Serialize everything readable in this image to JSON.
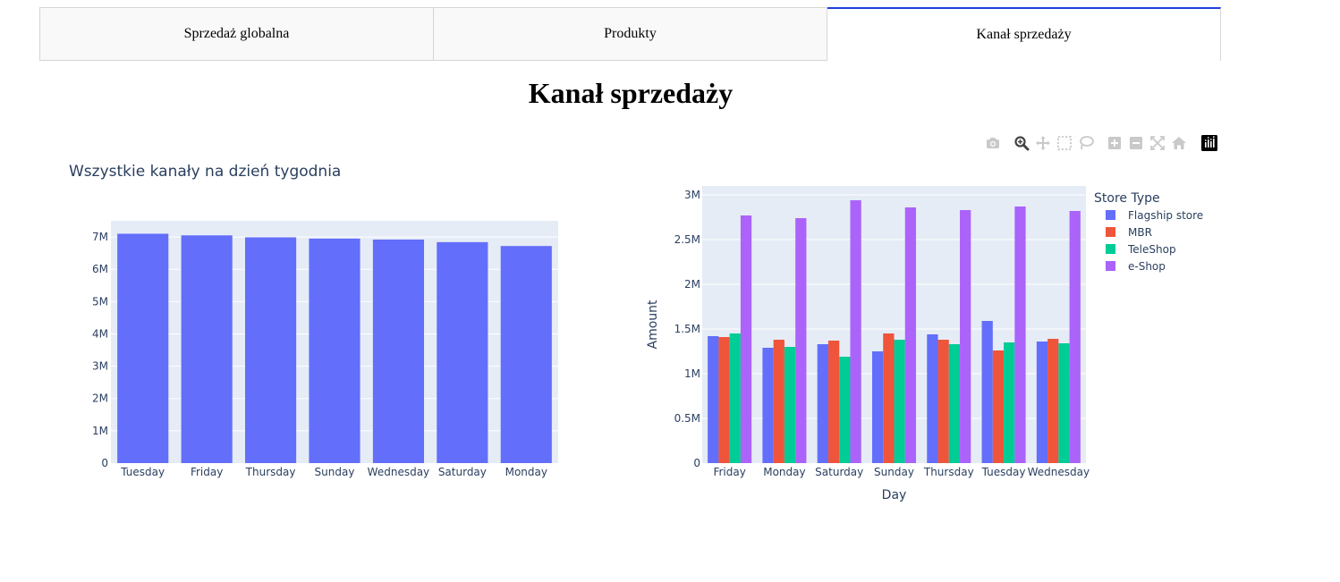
{
  "tabs": [
    {
      "label": "Sprzedaż globalna",
      "active": false
    },
    {
      "label": "Produkty",
      "active": false
    },
    {
      "label": "Kanał sprzedaży",
      "active": true
    }
  ],
  "page": {
    "title": "Kanał sprzedaży"
  },
  "modebar": {
    "icons": [
      "camera-icon",
      "zoom-icon",
      "pan-icon",
      "box-select-icon",
      "lasso-select-icon",
      "zoom-in-icon",
      "zoom-out-icon",
      "autoscale-icon",
      "reset-axes-icon",
      "plotly-logo-icon"
    ],
    "active": "zoom-icon"
  },
  "colors": {
    "plot_bg": "#e5ecf6",
    "grid": "#ffffff",
    "text": "#2a3f5f",
    "tab_accent": "#1f3fe0"
  },
  "chart_data": [
    {
      "type": "bar",
      "title": "Wszystkie kanały na dzień tygodnia",
      "categories": [
        "Tuesday",
        "Friday",
        "Thursday",
        "Sunday",
        "Wednesday",
        "Saturday",
        "Monday"
      ],
      "values": [
        7100000,
        7050000,
        6990000,
        6950000,
        6920000,
        6840000,
        6720000
      ],
      "ylim": [
        0,
        7500000
      ],
      "yticks": [
        0,
        1000000,
        2000000,
        3000000,
        4000000,
        5000000,
        6000000,
        7000000
      ],
      "ytick_labels": [
        "0",
        "1M",
        "2M",
        "3M",
        "4M",
        "5M",
        "6M",
        "7M"
      ],
      "color": "#636efa",
      "grid": true
    },
    {
      "type": "bar",
      "barmode": "group",
      "xlabel": "Day",
      "ylabel": "Amount",
      "legend_title": "Store Type",
      "legend_position": "top-right",
      "categories": [
        "Friday",
        "Monday",
        "Saturday",
        "Sunday",
        "Thursday",
        "Tuesday",
        "Wednesday"
      ],
      "series": [
        {
          "name": "Flagship store",
          "color": "#636efa",
          "values": [
            1420000,
            1290000,
            1330000,
            1250000,
            1440000,
            1590000,
            1360000
          ]
        },
        {
          "name": "MBR",
          "color": "#ef553b",
          "values": [
            1410000,
            1380000,
            1370000,
            1450000,
            1380000,
            1260000,
            1390000
          ]
        },
        {
          "name": "TeleShop",
          "color": "#00cc96",
          "values": [
            1450000,
            1300000,
            1190000,
            1380000,
            1330000,
            1350000,
            1340000
          ]
        },
        {
          "name": "e-Shop",
          "color": "#ab63fa",
          "values": [
            2770000,
            2740000,
            2940000,
            2860000,
            2830000,
            2870000,
            2820000
          ]
        }
      ],
      "ylim": [
        0,
        3100000
      ],
      "yticks": [
        0,
        500000,
        1000000,
        1500000,
        2000000,
        2500000,
        3000000
      ],
      "ytick_labels": [
        "0",
        "0.5M",
        "1M",
        "1.5M",
        "2M",
        "2.5M",
        "3M"
      ],
      "grid": true
    }
  ]
}
